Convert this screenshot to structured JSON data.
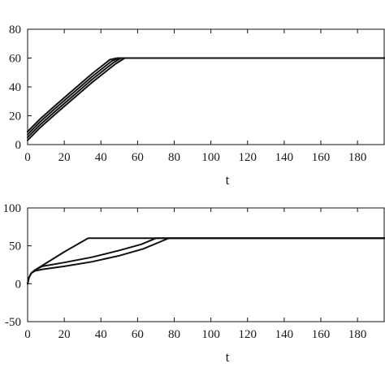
{
  "chart_data": [
    {
      "type": "line",
      "title": "",
      "xlabel": "t",
      "ylabel": "",
      "xlim": [
        0,
        195
      ],
      "ylim": [
        0,
        80
      ],
      "xticks": [
        0,
        20,
        40,
        60,
        80,
        100,
        120,
        140,
        160,
        180
      ],
      "yticks": [
        0,
        20,
        40,
        60,
        80
      ],
      "series": [
        {
          "x": [
            0,
            7,
            15,
            25,
            35,
            43,
            48,
            53,
            195
          ],
          "y": [
            3,
            12,
            21,
            32,
            43,
            51,
            56,
            60,
            60
          ]
        },
        {
          "x": [
            0,
            7,
            15,
            25,
            35,
            43,
            47,
            51,
            195
          ],
          "y": [
            5,
            14,
            23,
            34,
            45,
            53,
            57,
            60,
            60
          ]
        },
        {
          "x": [
            0,
            7,
            15,
            25,
            35,
            42,
            46,
            50,
            195
          ],
          "y": [
            7,
            16,
            25,
            36,
            47,
            54,
            58,
            60,
            60
          ]
        },
        {
          "x": [
            0,
            7,
            15,
            25,
            35,
            41,
            45,
            49,
            195
          ],
          "y": [
            9,
            18,
            27,
            38,
            49,
            55,
            59,
            60,
            60
          ]
        }
      ]
    },
    {
      "type": "line",
      "title": "",
      "xlabel": "t",
      "ylabel": "",
      "xlim": [
        0,
        195
      ],
      "ylim": [
        -50,
        100
      ],
      "xticks": [
        0,
        20,
        40,
        60,
        80,
        100,
        120,
        140,
        160,
        180
      ],
      "yticks": [
        -50,
        0,
        50,
        100
      ],
      "series": [
        {
          "x": [
            0,
            0.7,
            2,
            4,
            8,
            20,
            33,
            195
          ],
          "y": [
            0,
            8,
            14,
            18,
            24,
            42,
            60,
            60
          ]
        },
        {
          "x": [
            0,
            0.7,
            2,
            4,
            8,
            20,
            35,
            50,
            62,
            70,
            195
          ],
          "y": [
            0,
            8,
            14,
            18,
            23,
            28,
            35,
            44,
            52,
            60,
            60
          ]
        },
        {
          "x": [
            0,
            0.7,
            2,
            4,
            8,
            20,
            35,
            50,
            63,
            72,
            77,
            195
          ],
          "y": [
            0,
            8,
            14,
            17,
            19,
            23,
            29,
            37,
            46,
            55,
            60,
            60
          ]
        }
      ]
    }
  ]
}
